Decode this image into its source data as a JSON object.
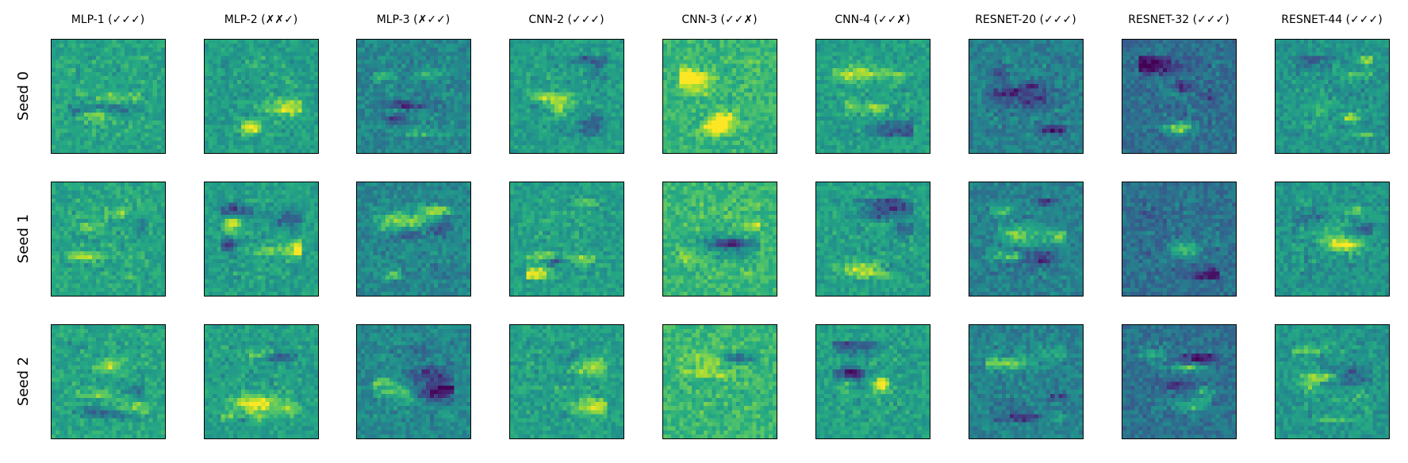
{
  "chart_data": {
    "type": "heatmap",
    "description_free": true,
    "colormap": "viridis",
    "columns": [
      "MLP-1 (✓✓✓)",
      "MLP-2 (✗✗✓)",
      "MLP-3 (✗✓✓)",
      "CNN-2 (✓✓✓)",
      "CNN-3 (✓✓✗)",
      "CNN-4 (✓✓✗)",
      "RESNET-20 (✓✓✓)",
      "RESNET-32 (✓✓✓)",
      "RESNET-44 (✓✓✓)"
    ],
    "rows": [
      "Seed 0",
      "Seed 1",
      "Seed 2"
    ],
    "grid": false,
    "axes_ticks": false
  }
}
